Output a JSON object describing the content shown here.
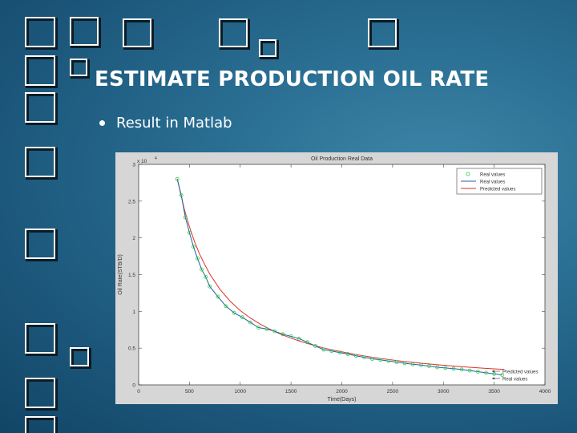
{
  "slide": {
    "title": "ESTIMATE PRODUCTION OIL RATE",
    "bullet": "Result in Matlab"
  },
  "colors": {
    "background": "#2a6f93",
    "text": "#ffffff",
    "figure_bg": "#d6d6d6",
    "real_values_marker": "#2ecc40",
    "real_values_line": "#1f5fa8",
    "predicted_line": "#e0302a"
  },
  "chart_data": {
    "type": "line",
    "title": "Oil Production Real Data",
    "xlabel": "Time(Days)",
    "ylabel": "Oil Rate(STB/D)",
    "y_multiplier": "x 10",
    "y_exponent": "4",
    "xlim": [
      0,
      4000
    ],
    "ylim": [
      0,
      30000
    ],
    "x_ticks": [
      "0",
      "500",
      "1000",
      "1500",
      "2000",
      "2500",
      "3000",
      "3500",
      "4000"
    ],
    "y_ticks": [
      "0",
      "0.5",
      "1",
      "1.5",
      "2",
      "2.5",
      "3"
    ],
    "legend_position": "top-right",
    "grid": false,
    "series": [
      {
        "name": "Real values",
        "style": "markers",
        "x": [
          380,
          420,
          460,
          500,
          540,
          580,
          620,
          660,
          700,
          780,
          860,
          940,
          1020,
          1100,
          1180,
          1260,
          1340,
          1420,
          1500,
          1580,
          1660,
          1740,
          1820,
          1900,
          1980,
          2060,
          2140,
          2220,
          2300,
          2380,
          2460,
          2540,
          2620,
          2700,
          2780,
          2860,
          2940,
          3020,
          3100,
          3180,
          3260,
          3340,
          3420,
          3500,
          3580
        ],
        "y": [
          28000,
          25800,
          22800,
          20700,
          18800,
          17200,
          15700,
          14700,
          13400,
          12000,
          10700,
          9800,
          9200,
          8500,
          7800,
          7600,
          7300,
          6900,
          6600,
          6300,
          5800,
          5300,
          4800,
          4600,
          4400,
          4200,
          3950,
          3750,
          3550,
          3400,
          3250,
          3100,
          2950,
          2800,
          2700,
          2550,
          2400,
          2300,
          2200,
          2100,
          1950,
          1800,
          1650,
          1500,
          1350
        ]
      },
      {
        "name": "Real values",
        "style": "line",
        "x": [
          380,
          420,
          460,
          500,
          540,
          580,
          620,
          660,
          700,
          780,
          860,
          940,
          1020,
          1100,
          1180,
          1260,
          1340,
          1420,
          1500,
          1580,
          1660,
          1740,
          1820,
          1900,
          1980,
          2060,
          2140,
          2220,
          2300,
          2380,
          2460,
          2540,
          2620,
          2700,
          2780,
          2860,
          2940,
          3020,
          3100,
          3180,
          3260,
          3340,
          3420,
          3500,
          3580
        ],
        "y": [
          28000,
          25800,
          22800,
          20700,
          18800,
          17200,
          15700,
          14700,
          13400,
          12000,
          10700,
          9800,
          9200,
          8500,
          7800,
          7600,
          7300,
          6900,
          6600,
          6300,
          5800,
          5300,
          4800,
          4600,
          4400,
          4200,
          3950,
          3750,
          3550,
          3400,
          3250,
          3100,
          2950,
          2800,
          2700,
          2550,
          2400,
          2300,
          2200,
          2100,
          1950,
          1800,
          1650,
          1500,
          1350
        ]
      },
      {
        "name": "Predicted values",
        "style": "line",
        "x": [
          380,
          450,
          500,
          550,
          600,
          650,
          700,
          800,
          900,
          1000,
          1100,
          1200,
          1300,
          1400,
          1500,
          1600,
          1700,
          1800,
          1900,
          2000,
          2100,
          2200,
          2300,
          2400,
          2500,
          2600,
          2700,
          2800,
          2900,
          3000,
          3100,
          3200,
          3300,
          3400,
          3500,
          3600
        ],
        "y": [
          28000,
          23900,
          21500,
          19500,
          17800,
          16400,
          15100,
          13000,
          11400,
          10100,
          9100,
          8250,
          7520,
          6900,
          6360,
          5890,
          5480,
          5110,
          4780,
          4490,
          4220,
          3980,
          3760,
          3560,
          3380,
          3210,
          3060,
          2920,
          2790,
          2670,
          2560,
          2450,
          2360,
          2270,
          2180,
          2110
        ]
      }
    ],
    "legend": [
      "Real values",
      "Real values",
      "Predicted values"
    ],
    "annotation_legend": [
      "Predicted values",
      "Real values"
    ]
  }
}
